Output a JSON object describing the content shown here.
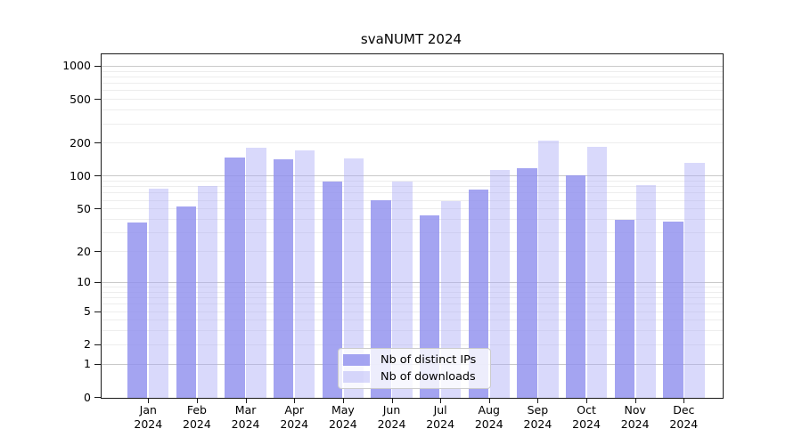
{
  "title": "svaNUMT 2024",
  "chart_data": {
    "type": "bar",
    "title": "svaNUMT 2024",
    "categories": [
      "Jan 2024",
      "Feb 2024",
      "Mar 2024",
      "Apr 2024",
      "May 2024",
      "Jun 2024",
      "Jul 2024",
      "Aug 2024",
      "Sep 2024",
      "Oct 2024",
      "Nov 2024",
      "Dec 2024"
    ],
    "series": [
      {
        "name": "Nb of distinct IPs",
        "color": "#a4a4f0",
        "values": [
          37,
          52,
          147,
          140,
          88,
          60,
          43,
          74,
          118,
          100,
          39,
          38
        ]
      },
      {
        "name": "Nb of downloads",
        "color": "#d9d9f8",
        "values": [
          76,
          81,
          180,
          171,
          143,
          89,
          58,
          112,
          210,
          185,
          82,
          131
        ]
      }
    ],
    "yscale": "log1p",
    "ylim": [
      0,
      1280
    ],
    "yticks": [
      0,
      1,
      2,
      5,
      10,
      20,
      50,
      100,
      200,
      500,
      1000
    ],
    "major_gridlines": [
      1,
      10,
      100,
      1000
    ],
    "minor_gridlines": [
      2,
      3,
      4,
      5,
      6,
      7,
      8,
      9,
      20,
      30,
      40,
      50,
      60,
      70,
      80,
      90,
      200,
      300,
      400,
      500,
      600,
      700,
      800,
      900
    ],
    "grid": "horizontal",
    "legend_position": "lower-center"
  },
  "colors": {
    "bar_ips_fill": "rgba(144,144,238,0.82)",
    "bar_downloads_fill": "rgba(170,170,246,0.45)",
    "grid_major": "#c9c9c9",
    "grid_minor": "#ededed",
    "frame": "#1a1a1a",
    "text": "#000000",
    "legend_bg": "rgba(255,255,255,0.8)",
    "legend_border": "#cccccc"
  }
}
